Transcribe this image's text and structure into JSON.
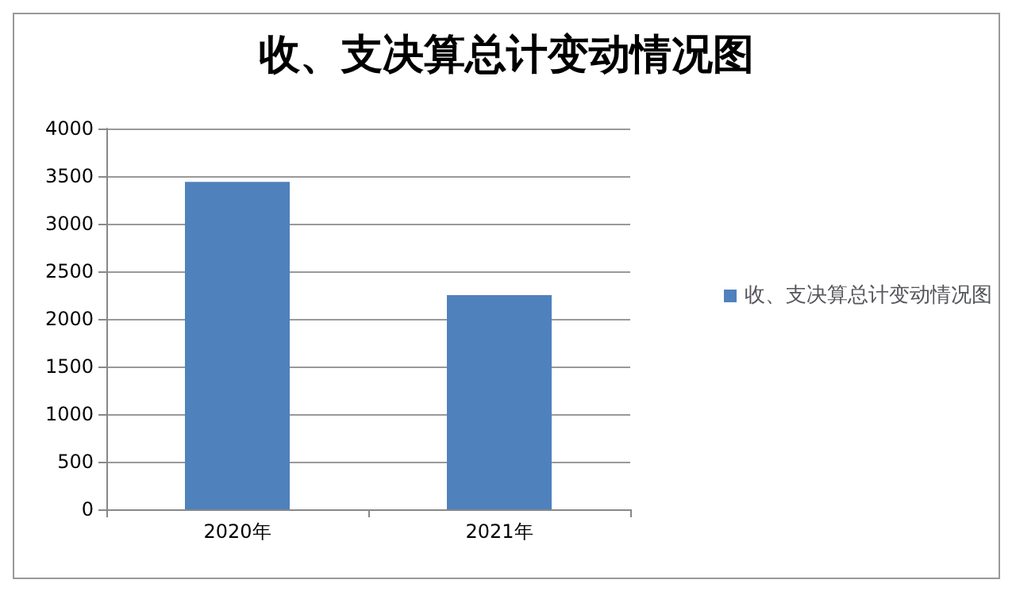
{
  "chart_data": {
    "type": "bar",
    "title": "收、支决算总计变动情况图",
    "categories": [
      "2020年",
      "2021年"
    ],
    "series": [
      {
        "name": "收、支决算总计变动情况图",
        "color": "#4f81bd",
        "values": [
          3440,
          2250
        ]
      }
    ],
    "ylim": [
      0,
      4000
    ],
    "yticks": [
      0,
      500,
      1000,
      1500,
      2000,
      2500,
      3000,
      3500,
      4000
    ],
    "grid": "y",
    "legend": "right"
  }
}
